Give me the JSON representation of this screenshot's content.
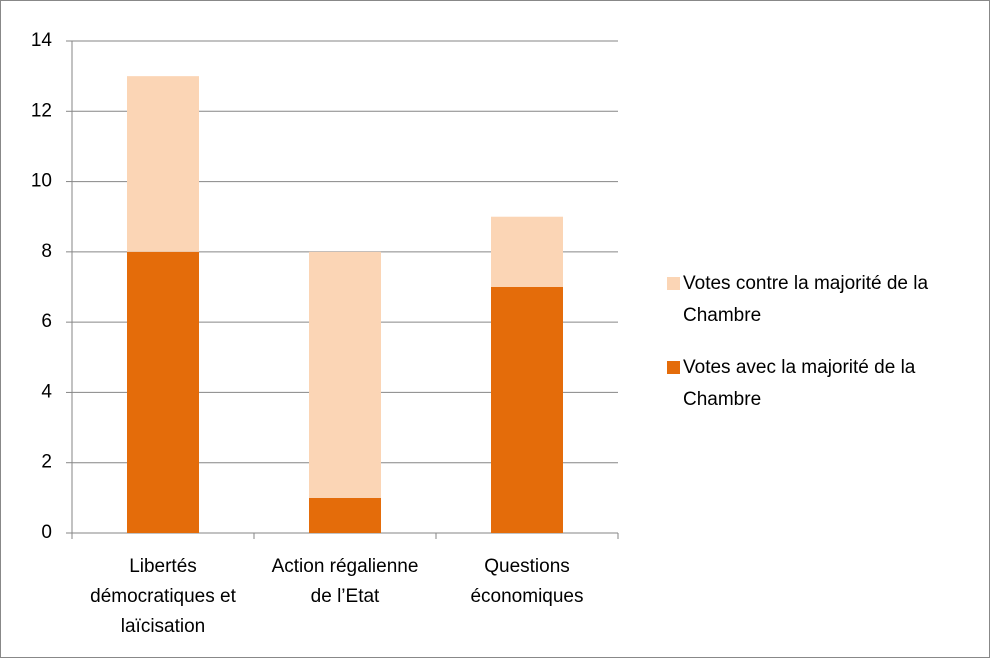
{
  "chart_data": {
    "type": "stacked_bar",
    "categories": [
      "Libertés démocratiques et laïcisation",
      "Action régalienne de l’Etat",
      "Questions économiques"
    ],
    "series": [
      {
        "name": "Votes avec la majorité de la Chambre",
        "color": "#e46c0a",
        "values": [
          8,
          1,
          7
        ]
      },
      {
        "name": "Votes contre la majorité de la Chambre",
        "color": "#fbd5b5",
        "values": [
          5,
          7,
          2
        ]
      }
    ],
    "ylim": [
      0,
      14
    ],
    "yticks": [
      0,
      2,
      4,
      6,
      8,
      10,
      12,
      14
    ],
    "grid": true,
    "legend": "right"
  }
}
